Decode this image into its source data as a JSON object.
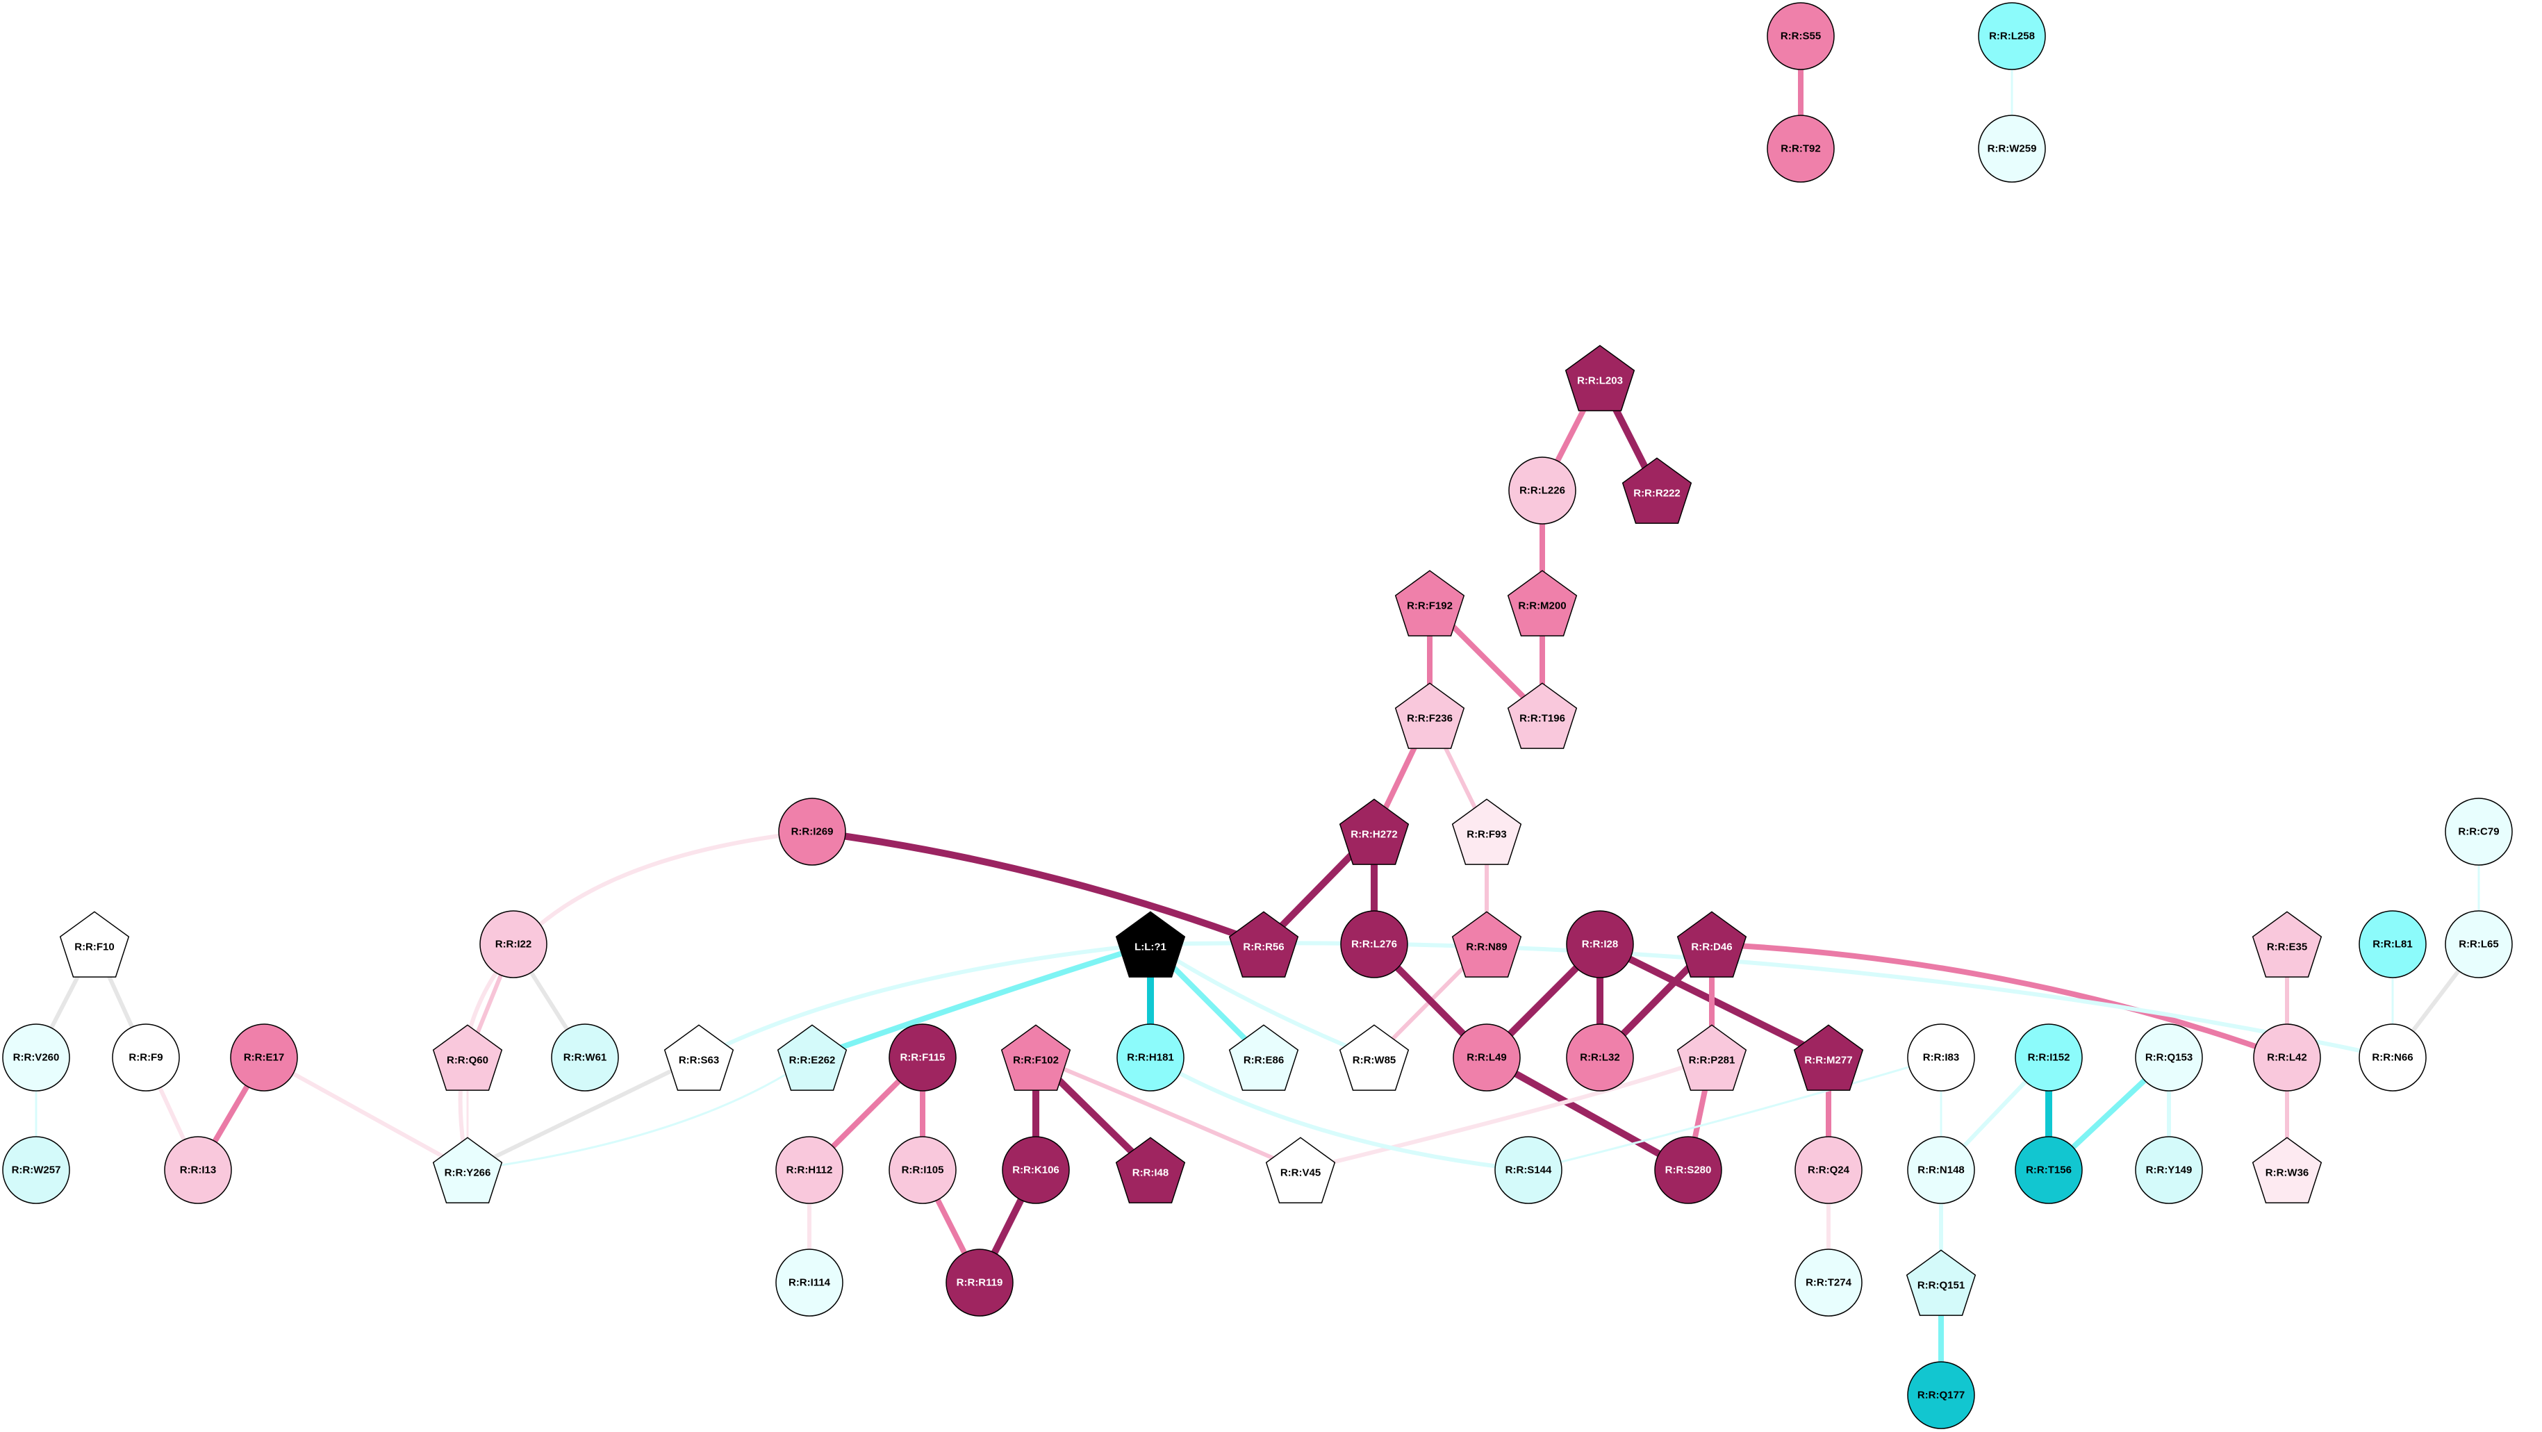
{
  "colors": {
    "white": "#ffffff",
    "pale_cyan": "#e8fefe",
    "light_cyan": "#d4fafa",
    "cyan": "#8cfbfb",
    "teal": "#12c6d0",
    "pale_pink": "#fdeaf1",
    "light_pink": "#f9c8dc",
    "pink": "#ef80aa",
    "magenta": "#9f2560",
    "black": "#000000",
    "edge_gray": "#e6e6e6",
    "edge_pale_pink": "#fbe4ec",
    "edge_light_pink": "#f7c4d7",
    "edge_pink": "#ea7aa6",
    "edge_magenta": "#9b2461",
    "edge_pale_cyan": "#d8fcfc",
    "edge_cyan": "#7ef4f4",
    "edge_teal": "#10c8d2"
  },
  "nodes": [
    {
      "id": "R:R:S55",
      "shape": "circle",
      "fill": "pink"
    },
    {
      "id": "R:R:T92",
      "shape": "circle",
      "fill": "pink"
    },
    {
      "id": "R:R:L258",
      "shape": "circle",
      "fill": "cyan"
    },
    {
      "id": "R:R:W259",
      "shape": "circle",
      "fill": "pale_cyan"
    },
    {
      "id": "R:R:L203",
      "shape": "pentagon",
      "fill": "magenta"
    },
    {
      "id": "R:R:L226",
      "shape": "circle",
      "fill": "light_pink"
    },
    {
      "id": "R:R:R222",
      "shape": "pentagon",
      "fill": "magenta"
    },
    {
      "id": "R:R:F192",
      "shape": "pentagon",
      "fill": "pink"
    },
    {
      "id": "R:R:M200",
      "shape": "pentagon",
      "fill": "pink"
    },
    {
      "id": "R:R:F236",
      "shape": "pentagon",
      "fill": "light_pink"
    },
    {
      "id": "R:R:T196",
      "shape": "pentagon",
      "fill": "light_pink"
    },
    {
      "id": "R:R:I269",
      "shape": "circle",
      "fill": "pink"
    },
    {
      "id": "R:R:H272",
      "shape": "pentagon",
      "fill": "magenta"
    },
    {
      "id": "R:R:F93",
      "shape": "pentagon",
      "fill": "pale_pink"
    },
    {
      "id": "R:R:C79",
      "shape": "circle",
      "fill": "pale_cyan"
    },
    {
      "id": "R:R:F10",
      "shape": "pentagon",
      "fill": "white"
    },
    {
      "id": "R:R:I22",
      "shape": "circle",
      "fill": "light_pink"
    },
    {
      "id": "L:L:?1",
      "shape": "pentagon",
      "fill": "black"
    },
    {
      "id": "R:R:R56",
      "shape": "pentagon",
      "fill": "magenta"
    },
    {
      "id": "R:R:L276",
      "shape": "circle",
      "fill": "magenta"
    },
    {
      "id": "R:R:N89",
      "shape": "pentagon",
      "fill": "pink"
    },
    {
      "id": "R:R:I28",
      "shape": "circle",
      "fill": "magenta"
    },
    {
      "id": "R:R:D46",
      "shape": "pentagon",
      "fill": "magenta"
    },
    {
      "id": "R:R:E35",
      "shape": "pentagon",
      "fill": "light_pink"
    },
    {
      "id": "R:R:L81",
      "shape": "circle",
      "fill": "cyan"
    },
    {
      "id": "R:R:L65",
      "shape": "circle",
      "fill": "pale_cyan"
    },
    {
      "id": "R:R:V260",
      "shape": "circle",
      "fill": "pale_cyan"
    },
    {
      "id": "R:R:F9",
      "shape": "circle",
      "fill": "white"
    },
    {
      "id": "R:R:E17",
      "shape": "circle",
      "fill": "pink"
    },
    {
      "id": "R:R:Q60",
      "shape": "pentagon",
      "fill": "light_pink"
    },
    {
      "id": "R:R:W61",
      "shape": "circle",
      "fill": "light_cyan"
    },
    {
      "id": "R:R:S63",
      "shape": "pentagon",
      "fill": "white"
    },
    {
      "id": "R:R:E262",
      "shape": "pentagon",
      "fill": "light_cyan"
    },
    {
      "id": "R:R:F115",
      "shape": "circle",
      "fill": "magenta"
    },
    {
      "id": "R:R:F102",
      "shape": "pentagon",
      "fill": "pink"
    },
    {
      "id": "R:R:H181",
      "shape": "circle",
      "fill": "cyan"
    },
    {
      "id": "R:R:E86",
      "shape": "pentagon",
      "fill": "pale_cyan"
    },
    {
      "id": "R:R:W85",
      "shape": "pentagon",
      "fill": "white"
    },
    {
      "id": "R:R:L49",
      "shape": "circle",
      "fill": "pink"
    },
    {
      "id": "R:R:L32",
      "shape": "circle",
      "fill": "pink"
    },
    {
      "id": "R:R:P281",
      "shape": "pentagon",
      "fill": "light_pink"
    },
    {
      "id": "R:R:M277",
      "shape": "pentagon",
      "fill": "magenta"
    },
    {
      "id": "R:R:I83",
      "shape": "circle",
      "fill": "white"
    },
    {
      "id": "R:R:I152",
      "shape": "circle",
      "fill": "cyan"
    },
    {
      "id": "R:R:Q153",
      "shape": "circle",
      "fill": "pale_cyan"
    },
    {
      "id": "R:R:L42",
      "shape": "circle",
      "fill": "light_pink"
    },
    {
      "id": "R:R:N66",
      "shape": "circle",
      "fill": "white"
    },
    {
      "id": "R:R:W257",
      "shape": "circle",
      "fill": "light_cyan"
    },
    {
      "id": "R:R:I13",
      "shape": "circle",
      "fill": "light_pink"
    },
    {
      "id": "R:R:Y266",
      "shape": "pentagon",
      "fill": "pale_cyan"
    },
    {
      "id": "R:R:H112",
      "shape": "circle",
      "fill": "light_pink"
    },
    {
      "id": "R:R:I105",
      "shape": "circle",
      "fill": "light_pink"
    },
    {
      "id": "R:R:K106",
      "shape": "circle",
      "fill": "magenta"
    },
    {
      "id": "R:R:I48",
      "shape": "pentagon",
      "fill": "magenta"
    },
    {
      "id": "R:R:V45",
      "shape": "pentagon",
      "fill": "white"
    },
    {
      "id": "R:R:S144",
      "shape": "circle",
      "fill": "light_cyan"
    },
    {
      "id": "R:R:S280",
      "shape": "circle",
      "fill": "magenta"
    },
    {
      "id": "R:R:Q24",
      "shape": "circle",
      "fill": "light_pink"
    },
    {
      "id": "R:R:N148",
      "shape": "circle",
      "fill": "pale_cyan"
    },
    {
      "id": "R:R:T156",
      "shape": "circle",
      "fill": "teal"
    },
    {
      "id": "R:R:Y149",
      "shape": "circle",
      "fill": "light_cyan"
    },
    {
      "id": "R:R:W36",
      "shape": "pentagon",
      "fill": "pale_pink"
    },
    {
      "id": "R:R:I114",
      "shape": "circle",
      "fill": "pale_cyan"
    },
    {
      "id": "R:R:R119",
      "shape": "circle",
      "fill": "magenta"
    },
    {
      "id": "R:R:T274",
      "shape": "circle",
      "fill": "pale_cyan"
    },
    {
      "id": "R:R:Q151",
      "shape": "pentagon",
      "fill": "light_cyan"
    },
    {
      "id": "R:R:Q177",
      "shape": "circle",
      "fill": "teal"
    }
  ],
  "edges": [
    {
      "source": "R:R:S55",
      "target": "R:R:T92",
      "color": "edge_pink",
      "weight": 3
    },
    {
      "source": "R:R:L258",
      "target": "R:R:W259",
      "color": "edge_pale_cyan",
      "weight": 1
    },
    {
      "source": "R:R:L203",
      "target": "R:R:L226",
      "color": "edge_pink",
      "weight": 3
    },
    {
      "source": "R:R:L203",
      "target": "R:R:R222",
      "color": "edge_magenta",
      "weight": 4
    },
    {
      "source": "R:R:L226",
      "target": "R:R:M200",
      "color": "edge_pink",
      "weight": 3
    },
    {
      "source": "R:R:F192",
      "target": "R:R:F236",
      "color": "edge_pink",
      "weight": 3
    },
    {
      "source": "R:R:F192",
      "target": "R:R:T196",
      "color": "edge_pink",
      "weight": 3
    },
    {
      "source": "R:R:M200",
      "target": "R:R:T196",
      "color": "edge_pink",
      "weight": 3
    },
    {
      "source": "R:R:F236",
      "target": "R:R:H272",
      "color": "edge_pink",
      "weight": 3
    },
    {
      "source": "R:R:F236",
      "target": "R:R:F93",
      "color": "edge_light_pink",
      "weight": 2
    },
    {
      "source": "R:R:I269",
      "target": "R:R:R56",
      "color": "edge_magenta",
      "weight": 4
    },
    {
      "source": "R:R:I269",
      "target": "R:R:Y266",
      "color": "edge_pale_pink",
      "weight": 2
    },
    {
      "source": "R:R:H272",
      "target": "R:R:R56",
      "color": "edge_magenta",
      "weight": 4
    },
    {
      "source": "R:R:H272",
      "target": "R:R:L276",
      "color": "edge_magenta",
      "weight": 4
    },
    {
      "source": "R:R:F93",
      "target": "R:R:N89",
      "color": "edge_light_pink",
      "weight": 2
    },
    {
      "source": "R:R:N89",
      "target": "R:R:W85",
      "color": "edge_light_pink",
      "weight": 2
    },
    {
      "source": "R:R:L276",
      "target": "R:R:L49",
      "color": "edge_magenta",
      "weight": 4
    },
    {
      "source": "R:R:I28",
      "target": "R:R:L49",
      "color": "edge_magenta",
      "weight": 4
    },
    {
      "source": "R:R:I28",
      "target": "R:R:L32",
      "color": "edge_magenta",
      "weight": 4
    },
    {
      "source": "R:R:I28",
      "target": "R:R:M277",
      "color": "edge_magenta",
      "weight": 4
    },
    {
      "source": "R:R:D46",
      "target": "R:R:L32",
      "color": "edge_magenta",
      "weight": 4
    },
    {
      "source": "R:R:D46",
      "target": "R:R:P281",
      "color": "edge_pink",
      "weight": 3
    },
    {
      "source": "R:R:D46",
      "target": "R:R:L42",
      "color": "edge_pink",
      "weight": 3
    },
    {
      "source": "R:R:L49",
      "target": "R:R:S280",
      "color": "edge_magenta",
      "weight": 4
    },
    {
      "source": "R:R:P281",
      "target": "R:R:S280",
      "color": "edge_pink",
      "weight": 3
    },
    {
      "source": "R:R:P281",
      "target": "R:R:V45",
      "color": "edge_pale_pink",
      "weight": 2
    },
    {
      "source": "R:R:M277",
      "target": "R:R:Q24",
      "color": "edge_pink",
      "weight": 3
    },
    {
      "source": "R:R:Q24",
      "target": "R:R:T274",
      "color": "edge_pale_pink",
      "weight": 2
    },
    {
      "source": "R:R:E35",
      "target": "R:R:L42",
      "color": "edge_light_pink",
      "weight": 2
    },
    {
      "source": "R:R:L42",
      "target": "R:R:W36",
      "color": "edge_light_pink",
      "weight": 2
    },
    {
      "source": "R:R:L81",
      "target": "R:R:N66",
      "color": "edge_pale_cyan",
      "weight": 1
    },
    {
      "source": "R:R:C79",
      "target": "R:R:L65",
      "color": "edge_pale_cyan",
      "weight": 1
    },
    {
      "source": "R:R:L65",
      "target": "R:R:N66",
      "color": "edge_gray",
      "weight": 2
    },
    {
      "source": "R:R:I83",
      "target": "R:R:N148",
      "color": "edge_pale_cyan",
      "weight": 1
    },
    {
      "source": "R:R:I83",
      "target": "R:R:S144",
      "color": "edge_pale_cyan",
      "weight": 1
    },
    {
      "source": "R:R:I152",
      "target": "R:R:N148",
      "color": "edge_pale_cyan",
      "weight": 2
    },
    {
      "source": "R:R:I152",
      "target": "R:R:T156",
      "color": "edge_teal",
      "weight": 4
    },
    {
      "source": "R:R:Q153",
      "target": "R:R:T156",
      "color": "edge_cyan",
      "weight": 3
    },
    {
      "source": "R:R:Q153",
      "target": "R:R:Y149",
      "color": "edge_pale_cyan",
      "weight": 2
    },
    {
      "source": "R:R:N148",
      "target": "R:R:Q151",
      "color": "edge_pale_cyan",
      "weight": 2
    },
    {
      "source": "R:R:Q151",
      "target": "R:R:Q177",
      "color": "edge_cyan",
      "weight": 3
    },
    {
      "source": "R:R:F10",
      "target": "R:R:V260",
      "color": "edge_gray",
      "weight": 2
    },
    {
      "source": "R:R:F10",
      "target": "R:R:F9",
      "color": "edge_gray",
      "weight": 2
    },
    {
      "source": "R:R:V260",
      "target": "R:R:W257",
      "color": "edge_pale_cyan",
      "weight": 1
    },
    {
      "source": "R:R:F9",
      "target": "R:R:I13",
      "color": "edge_pale_pink",
      "weight": 2
    },
    {
      "source": "R:R:E17",
      "target": "R:R:I13",
      "color": "edge_pink",
      "weight": 3
    },
    {
      "source": "R:R:E17",
      "target": "R:R:Y266",
      "color": "edge_pale_pink",
      "weight": 2
    },
    {
      "source": "R:R:I22",
      "target": "R:R:Q60",
      "color": "edge_light_pink",
      "weight": 2
    },
    {
      "source": "R:R:I22",
      "target": "R:R:W61",
      "color": "edge_gray",
      "weight": 2
    },
    {
      "source": "R:R:Q60",
      "target": "R:R:Y266",
      "color": "edge_pale_pink",
      "weight": 1
    },
    {
      "source": "R:R:S63",
      "target": "R:R:Y266",
      "color": "edge_gray",
      "weight": 2
    },
    {
      "source": "R:R:E262",
      "target": "R:R:Y266",
      "color": "edge_pale_cyan",
      "weight": 1
    },
    {
      "source": "L:L:?1",
      "target": "R:R:E262",
      "color": "edge_cyan",
      "weight": 3
    },
    {
      "source": "L:L:?1",
      "target": "R:R:S63",
      "color": "edge_pale_cyan",
      "weight": 2
    },
    {
      "source": "L:L:?1",
      "target": "R:R:H181",
      "color": "edge_teal",
      "weight": 4
    },
    {
      "source": "L:L:?1",
      "target": "R:R:E86",
      "color": "edge_cyan",
      "weight": 3
    },
    {
      "source": "L:L:?1",
      "target": "R:R:W85",
      "color": "edge_pale_cyan",
      "weight": 2
    },
    {
      "source": "L:L:?1",
      "target": "R:R:N66",
      "color": "edge_pale_cyan",
      "weight": 2
    },
    {
      "source": "R:R:H181",
      "target": "R:R:S144",
      "color": "edge_pale_cyan",
      "weight": 2
    },
    {
      "source": "R:R:F115",
      "target": "R:R:H112",
      "color": "edge_pink",
      "weight": 3
    },
    {
      "source": "R:R:F115",
      "target": "R:R:I105",
      "color": "edge_pink",
      "weight": 3
    },
    {
      "source": "R:R:H112",
      "target": "R:R:I114",
      "color": "edge_pale_pink",
      "weight": 2
    },
    {
      "source": "R:R:I105",
      "target": "R:R:R119",
      "color": "edge_pink",
      "weight": 3
    },
    {
      "source": "R:R:F102",
      "target": "R:R:K106",
      "color": "edge_magenta",
      "weight": 4
    },
    {
      "source": "R:R:F102",
      "target": "R:R:I48",
      "color": "edge_magenta",
      "weight": 4
    },
    {
      "source": "R:R:F102",
      "target": "R:R:V45",
      "color": "edge_light_pink",
      "weight": 2
    },
    {
      "source": "R:R:K106",
      "target": "R:R:R119",
      "color": "edge_magenta",
      "weight": 4
    }
  ]
}
